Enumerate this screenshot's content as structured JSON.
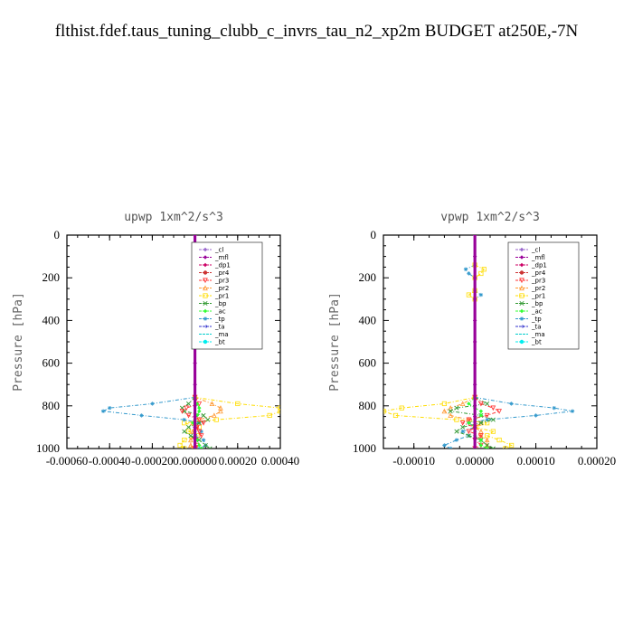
{
  "title": "flthist.fdef.taus_tuning_clubb_c_invrs_tau_n2_xp2m  BUDGET at250E,-7N",
  "legend_entries": [
    {
      "name": "_cl",
      "color": "#9966cc",
      "marker": "diamond"
    },
    {
      "name": "_mfl",
      "color": "#990099",
      "marker": "diamond"
    },
    {
      "name": "_dp1",
      "color": "#cc0066",
      "marker": "diamond"
    },
    {
      "name": "_pr4",
      "color": "#cc3333",
      "marker": "circle"
    },
    {
      "name": "_pr3",
      "color": "#ff3333",
      "marker": "triangle-down"
    },
    {
      "name": "_pr2",
      "color": "#ff9933",
      "marker": "triangle-up"
    },
    {
      "name": "_pr1",
      "color": "#ffdd00",
      "marker": "square"
    },
    {
      "name": "_bp",
      "color": "#339933",
      "marker": "x"
    },
    {
      "name": "_ac",
      "color": "#33ff33",
      "marker": "diamond"
    },
    {
      "name": "_tp",
      "color": "#3399cc",
      "marker": "star"
    },
    {
      "name": "_ta",
      "color": "#3333cc",
      "marker": "arrow"
    },
    {
      "name": "_ma",
      "color": "#00cccc",
      "marker": "none"
    },
    {
      "name": "_bt",
      "color": "#00eeee",
      "marker": "circle"
    }
  ],
  "chart_data": [
    {
      "type": "line",
      "title": "upwp   1xm^2/s^3",
      "xlabel": "",
      "ylabel": "Pressure [hPa]",
      "xlim": [
        -0.0006,
        0.0004
      ],
      "ylim": [
        1000,
        0
      ],
      "xticks": [
        -0.0006,
        -0.0004,
        -0.0002,
        0.0,
        0.0002,
        0.0004
      ],
      "xticklabels": [
        "-0.00060",
        "-0.00040",
        "-0.00020",
        "0.000000",
        "0.00020",
        "0.00040"
      ],
      "yticks": [
        0,
        200,
        400,
        600,
        800,
        1000
      ],
      "yticklabels": [
        "0",
        "200",
        "400",
        "600",
        "800",
        "1000"
      ],
      "legend_position": "top-right",
      "series": [
        {
          "name": "_pr1",
          "levels": [
            760,
            790,
            810,
            825,
            845,
            865,
            880,
            900,
            920,
            940,
            960,
            985,
            1000
          ],
          "values": [
            0.0,
            0.0002,
            0.0004,
            0.0004,
            0.00035,
            0.0001,
            -5e-05,
            2e-05,
            -3e-05,
            1e-05,
            -5e-05,
            -7e-05,
            -5e-05
          ]
        },
        {
          "name": "_pr2",
          "levels": [
            760,
            790,
            810,
            825,
            845,
            865,
            880,
            900,
            920,
            940,
            960,
            985,
            1000
          ],
          "values": [
            0.0,
            8e-05,
            0.00012,
            0.00012,
            9e-05,
            2e-05,
            -1e-05,
            1e-05,
            -1e-05,
            0.0,
            -2e-05,
            -2e-05,
            -1e-05
          ]
        },
        {
          "name": "_tp",
          "levels": [
            760,
            790,
            810,
            825,
            845,
            865,
            880,
            900,
            920,
            940,
            960,
            985,
            1000
          ],
          "values": [
            0.0,
            -0.0002,
            -0.0004,
            -0.00043,
            -0.00025,
            -5e-05,
            2e-05,
            0.0,
            3e-05,
            0.0,
            4e-05,
            5e-05,
            2e-05
          ]
        },
        {
          "name": "_bp",
          "levels": [
            760,
            790,
            810,
            825,
            845,
            865,
            880,
            900,
            920,
            940,
            960,
            985,
            1000
          ],
          "values": [
            0.0,
            -3e-05,
            -6e-05,
            -5e-05,
            4e-05,
            6e-05,
            2e-05,
            -3e-05,
            -5e-05,
            -2e-05,
            2e-05,
            5e-05,
            7e-05
          ]
        },
        {
          "name": "_pr3",
          "levels": [
            760,
            790,
            810,
            825,
            845,
            865,
            880,
            900,
            920,
            940,
            960,
            985,
            1000
          ],
          "values": [
            0.0,
            2e-05,
            -4e-05,
            -6e-05,
            -3e-05,
            2e-05,
            4e-05,
            1e-05,
            2e-05,
            3e-05,
            0.0,
            1e-05,
            0.0
          ]
        },
        {
          "name": "_ac",
          "levels": [
            760,
            790,
            810,
            825,
            845,
            865,
            880,
            900,
            920,
            940,
            960,
            985,
            1000
          ],
          "values": [
            0.0,
            1e-05,
            2e-05,
            2e-05,
            1e-05,
            0.0,
            -1e-05,
            0.0,
            0.0,
            0.0,
            1e-05,
            2e-05,
            3e-05
          ]
        },
        {
          "name": "_cl",
          "levels": [
            0,
            100,
            200,
            300,
            400,
            500,
            600,
            700,
            800,
            850,
            900,
            950,
            1000
          ],
          "values": [
            0,
            0,
            0,
            0,
            0,
            0,
            0,
            0,
            0,
            0,
            0,
            0,
            0
          ]
        },
        {
          "name": "_mfl",
          "levels": [
            0,
            100,
            200,
            300,
            400,
            500,
            600,
            700,
            800,
            850,
            900,
            950,
            1000
          ],
          "values": [
            0,
            0,
            0,
            0,
            0,
            0,
            0,
            0,
            0,
            0,
            0,
            0,
            0
          ]
        }
      ]
    },
    {
      "type": "line",
      "title": "vpwp   1xm^2/s^3",
      "xlabel": "",
      "ylabel": "Pressure [hPa]",
      "xlim": [
        -0.00015,
        0.0002
      ],
      "ylim": [
        1000,
        0
      ],
      "xticks": [
        -0.0001,
        0.0,
        0.0001,
        0.0002
      ],
      "xticklabels": [
        "-0.00010",
        "0.00000",
        "0.00010",
        "0.00020"
      ],
      "yticks": [
        0,
        200,
        400,
        600,
        800,
        1000
      ],
      "yticklabels": [
        "0",
        "200",
        "400",
        "600",
        "800",
        "1000"
      ],
      "legend_position": "top-right",
      "series": [
        {
          "name": "_pr1",
          "levels": [
            760,
            790,
            810,
            825,
            845,
            865,
            880,
            900,
            920,
            940,
            960,
            985,
            1000
          ],
          "values": [
            0.0,
            -5e-05,
            -0.00012,
            -0.00015,
            -0.00013,
            -3e-05,
            2e-05,
            0.0,
            3e-05,
            2e-05,
            4e-05,
            6e-05,
            5e-05
          ]
        },
        {
          "name": "_pr2",
          "levels": [
            760,
            790,
            810,
            825,
            845,
            865,
            880,
            900,
            920,
            940,
            960,
            985,
            1000
          ],
          "values": [
            0.0,
            -2e-05,
            -4e-05,
            -5e-05,
            -4e-05,
            -1e-05,
            1e-05,
            0.0,
            1e-05,
            1e-05,
            2e-05,
            2e-05,
            2e-05
          ]
        },
        {
          "name": "_tp",
          "levels": [
            760,
            790,
            810,
            825,
            845,
            865,
            880,
            900,
            920,
            940,
            960,
            985,
            1000
          ],
          "values": [
            0.0,
            6e-05,
            0.00013,
            0.00016,
            0.0001,
            2e-05,
            -1e-05,
            0.0,
            -2e-05,
            -1e-05,
            -3e-05,
            -5e-05,
            -4e-05
          ]
        },
        {
          "name": "_bp",
          "levels": [
            760,
            790,
            810,
            825,
            845,
            865,
            880,
            900,
            920,
            940,
            960,
            985,
            1000
          ],
          "values": [
            0.0,
            2e-05,
            -3e-05,
            -4e-05,
            1e-05,
            3e-05,
            1e-05,
            -2e-05,
            -3e-05,
            -1e-05,
            1e-05,
            2e-05,
            3e-05
          ]
        },
        {
          "name": "_pr3",
          "levels": [
            760,
            790,
            810,
            825,
            845,
            865,
            880,
            900,
            920,
            940,
            960,
            985,
            1000
          ],
          "values": [
            0.0,
            1e-05,
            3e-05,
            4e-05,
            2e-05,
            -1e-05,
            -2e-05,
            0.0,
            -1e-05,
            1e-05,
            0.0,
            1e-05,
            0.0
          ]
        },
        {
          "name": "_ac",
          "levels": [
            760,
            790,
            810,
            825,
            845,
            865,
            880,
            900,
            920,
            940,
            960,
            985,
            1000
          ],
          "values": [
            0.0,
            -1e-05,
            0.0,
            1e-05,
            1e-05,
            0.0,
            -1e-05,
            0.0,
            0.0,
            0.0,
            1e-05,
            1e-05,
            2e-05
          ]
        },
        {
          "name": "_tp",
          "levels": [
            140,
            160,
            180,
            200,
            260,
            280,
            300
          ],
          "values": [
            0.0,
            -1.5e-05,
            -1e-05,
            0.0,
            0.0,
            1e-05,
            0.0
          ]
        },
        {
          "name": "_pr1",
          "levels": [
            140,
            160,
            180,
            200,
            260,
            280,
            300
          ],
          "values": [
            0.0,
            1.5e-05,
            1e-05,
            0.0,
            0.0,
            -1e-05,
            0.0
          ]
        },
        {
          "name": "_cl",
          "levels": [
            0,
            100,
            200,
            300,
            400,
            500,
            600,
            700,
            800,
            850,
            900,
            950,
            1000
          ],
          "values": [
            0,
            0,
            0,
            0,
            0,
            0,
            0,
            0,
            0,
            0,
            0,
            0,
            0
          ]
        },
        {
          "name": "_mfl",
          "levels": [
            0,
            100,
            200,
            300,
            400,
            500,
            600,
            700,
            800,
            850,
            900,
            950,
            1000
          ],
          "values": [
            0,
            0,
            0,
            0,
            0,
            0,
            0,
            0,
            0,
            0,
            0,
            0,
            0
          ]
        }
      ]
    }
  ]
}
